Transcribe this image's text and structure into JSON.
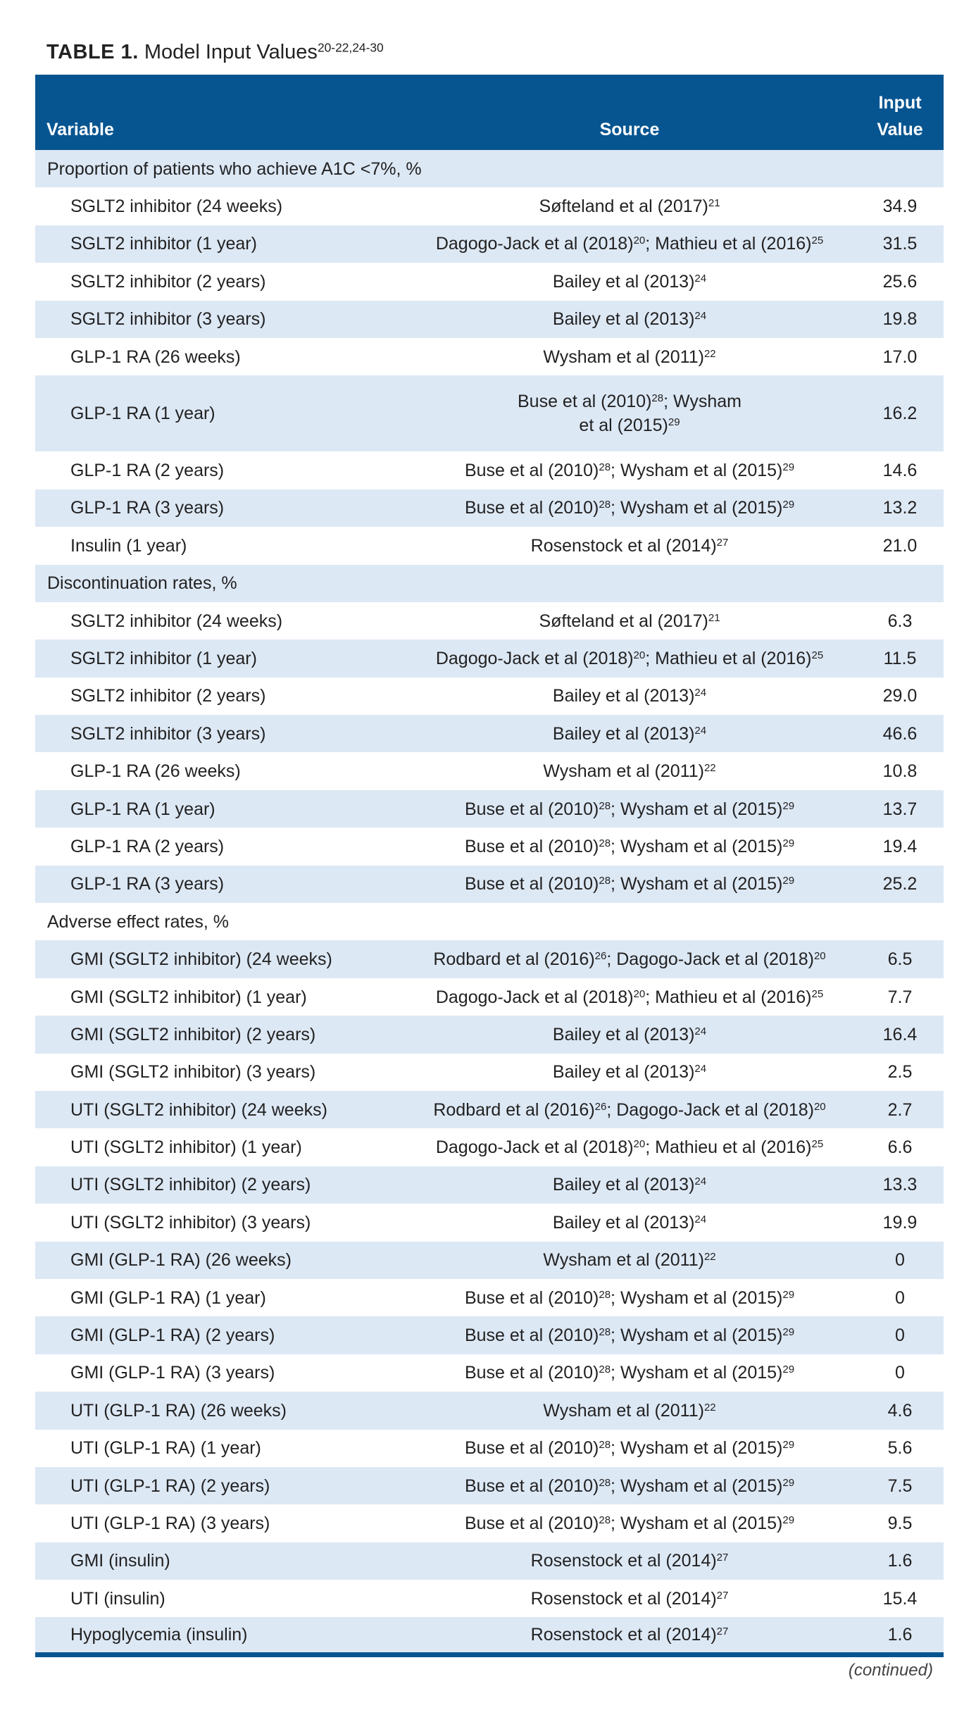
{
  "title": {
    "label": "TABLE 1.",
    "text": "Model Input Values",
    "refs": "20-22,24-30"
  },
  "table": {
    "columns": [
      "Variable",
      "Source",
      "Input Value"
    ],
    "sections": [
      {
        "label": "Proportion of patients who achieve A1C <7%, %",
        "rows": [
          {
            "variable": "SGLT2 inhibitor (24 weeks)",
            "source": [
              {
                "text": "Søfteland et al (2017)",
                "sup": "21"
              }
            ],
            "value": "34.9"
          },
          {
            "variable": "SGLT2 inhibitor (1 year)",
            "source": [
              {
                "text": "Dagogo-Jack et al (2018)",
                "sup": "20"
              },
              {
                "text": "; Mathieu et al (2016)",
                "sup": "25"
              }
            ],
            "value": "31.5"
          },
          {
            "variable": "SGLT2 inhibitor (2 years)",
            "source": [
              {
                "text": "Bailey et al (2013)",
                "sup": "24"
              }
            ],
            "value": "25.6"
          },
          {
            "variable": "SGLT2 inhibitor (3 years)",
            "source": [
              {
                "text": "Bailey et al (2013)",
                "sup": "24"
              }
            ],
            "value": "19.8"
          },
          {
            "variable": "GLP-1 RA (26 weeks)",
            "source": [
              {
                "text": "Wysham et al (2011)",
                "sup": "22"
              }
            ],
            "value": "17.0"
          },
          {
            "variable": "GLP-1 RA (1 year)",
            "source": [
              {
                "text": "Buse et al (2010)",
                "sup": "28"
              },
              {
                "text": "; Wysham et al (2015)",
                "sup": "29"
              }
            ],
            "value": "16.2"
          },
          {
            "variable": "GLP-1 RA (2 years)",
            "source": [
              {
                "text": "Buse et al (2010)",
                "sup": "28"
              },
              {
                "text": "; Wysham et al (2015)",
                "sup": "29"
              }
            ],
            "value": "14.6"
          },
          {
            "variable": "GLP-1 RA (3 years)",
            "source": [
              {
                "text": "Buse et al (2010)",
                "sup": "28"
              },
              {
                "text": "; Wysham et al (2015)",
                "sup": "29"
              }
            ],
            "value": "13.2"
          },
          {
            "variable": "Insulin (1 year)",
            "source": [
              {
                "text": "Rosenstock et al (2014)",
                "sup": "27"
              }
            ],
            "value": "21.0"
          }
        ]
      },
      {
        "label": "Discontinuation rates, %",
        "rows": [
          {
            "variable": "SGLT2 inhibitor (24 weeks)",
            "source": [
              {
                "text": "Søfteland et al (2017)",
                "sup": "21"
              }
            ],
            "value": "6.3"
          },
          {
            "variable": "SGLT2 inhibitor (1 year)",
            "source": [
              {
                "text": "Dagogo-Jack et al (2018)",
                "sup": "20"
              },
              {
                "text": "; Mathieu et al (2016)",
                "sup": "25"
              }
            ],
            "value": "11.5"
          },
          {
            "variable": "SGLT2 inhibitor (2 years)",
            "source": [
              {
                "text": "Bailey et al (2013)",
                "sup": "24"
              }
            ],
            "value": "29.0"
          },
          {
            "variable": "SGLT2 inhibitor (3 years)",
            "source": [
              {
                "text": "Bailey et al (2013)",
                "sup": "24"
              }
            ],
            "value": "46.6"
          },
          {
            "variable": "GLP-1 RA (26 weeks)",
            "source": [
              {
                "text": "Wysham et al (2011)",
                "sup": "22"
              }
            ],
            "value": "10.8"
          },
          {
            "variable": "GLP-1 RA (1 year)",
            "source": [
              {
                "text": "Buse et al (2010)",
                "sup": "28"
              },
              {
                "text": "; Wysham et al (2015)",
                "sup": "29"
              }
            ],
            "value": "13.7"
          },
          {
            "variable": "GLP-1 RA (2 years)",
            "source": [
              {
                "text": "Buse et al (2010)",
                "sup": "28"
              },
              {
                "text": "; Wysham et al (2015)",
                "sup": "29"
              }
            ],
            "value": "19.4"
          },
          {
            "variable": "GLP-1 RA (3 years)",
            "source": [
              {
                "text": "Buse et al (2010)",
                "sup": "28"
              },
              {
                "text": "; Wysham et al (2015)",
                "sup": "29"
              }
            ],
            "value": "25.2"
          }
        ]
      },
      {
        "label": "Adverse effect rates, %",
        "rows": [
          {
            "variable": "GMI (SGLT2 inhibitor) (24 weeks)",
            "source": [
              {
                "text": "Rodbard et al (2016)",
                "sup": "26"
              },
              {
                "text": "; Dagogo-Jack et al (2018)",
                "sup": "20"
              }
            ],
            "value": "6.5"
          },
          {
            "variable": "GMI (SGLT2 inhibitor) (1 year)",
            "source": [
              {
                "text": "Dagogo-Jack et al (2018)",
                "sup": "20"
              },
              {
                "text": "; Mathieu et al (2016)",
                "sup": "25"
              }
            ],
            "value": "7.7"
          },
          {
            "variable": "GMI (SGLT2 inhibitor) (2 years)",
            "source": [
              {
                "text": "Bailey et al (2013)",
                "sup": "24"
              }
            ],
            "value": "16.4"
          },
          {
            "variable": "GMI (SGLT2 inhibitor) (3 years)",
            "source": [
              {
                "text": "Bailey et al (2013)",
                "sup": "24"
              }
            ],
            "value": "2.5"
          },
          {
            "variable": "UTI (SGLT2 inhibitor) (24 weeks)",
            "source": [
              {
                "text": "Rodbard et al (2016)",
                "sup": "26"
              },
              {
                "text": "; Dagogo-Jack et al (2018)",
                "sup": "20"
              }
            ],
            "value": "2.7"
          },
          {
            "variable": "UTI (SGLT2 inhibitor) (1 year)",
            "source": [
              {
                "text": "Dagogo-Jack et al (2018)",
                "sup": "20"
              },
              {
                "text": "; Mathieu et al (2016)",
                "sup": "25"
              }
            ],
            "value": "6.6"
          },
          {
            "variable": "UTI (SGLT2 inhibitor) (2 years)",
            "source": [
              {
                "text": "Bailey et al (2013)",
                "sup": "24"
              }
            ],
            "value": "13.3"
          },
          {
            "variable": "UTI (SGLT2 inhibitor) (3 years)",
            "source": [
              {
                "text": "Bailey et al (2013)",
                "sup": "24"
              }
            ],
            "value": "19.9"
          },
          {
            "variable": "GMI (GLP-1 RA) (26 weeks)",
            "source": [
              {
                "text": "Wysham et al (2011)",
                "sup": "22"
              }
            ],
            "value": "0"
          },
          {
            "variable": "GMI (GLP-1 RA) (1 year)",
            "source": [
              {
                "text": "Buse et al (2010)",
                "sup": "28"
              },
              {
                "text": "; Wysham et al (2015)",
                "sup": "29"
              }
            ],
            "value": "0"
          },
          {
            "variable": "GMI (GLP-1 RA) (2 years)",
            "source": [
              {
                "text": "Buse et al (2010)",
                "sup": "28"
              },
              {
                "text": "; Wysham et al (2015)",
                "sup": "29"
              }
            ],
            "value": "0"
          },
          {
            "variable": "GMI (GLP-1 RA) (3 years)",
            "source": [
              {
                "text": "Buse et al (2010)",
                "sup": "28"
              },
              {
                "text": "; Wysham et al (2015)",
                "sup": "29"
              }
            ],
            "value": "0"
          },
          {
            "variable": "UTI (GLP-1 RA) (26 weeks)",
            "source": [
              {
                "text": "Wysham et al (2011)",
                "sup": "22"
              }
            ],
            "value": "4.6"
          },
          {
            "variable": "UTI (GLP-1 RA) (1 year)",
            "source": [
              {
                "text": "Buse et al (2010)",
                "sup": "28"
              },
              {
                "text": "; Wysham et al (2015)",
                "sup": "29"
              }
            ],
            "value": "5.6"
          },
          {
            "variable": "UTI (GLP-1 RA) (2 years)",
            "source": [
              {
                "text": "Buse et al (2010)",
                "sup": "28"
              },
              {
                "text": "; Wysham et al (2015)",
                "sup": "29"
              }
            ],
            "value": "7.5"
          },
          {
            "variable": "UTI (GLP-1 RA) (3 years)",
            "source": [
              {
                "text": "Buse et al (2010)",
                "sup": "28"
              },
              {
                "text": "; Wysham et al (2015)",
                "sup": "29"
              }
            ],
            "value": "9.5"
          },
          {
            "variable": "GMI (insulin)",
            "source": [
              {
                "text": "Rosenstock et al (2014)",
                "sup": "27"
              }
            ],
            "value": "1.6"
          },
          {
            "variable": "UTI (insulin)",
            "source": [
              {
                "text": "Rosenstock et al (2014)",
                "sup": "27"
              }
            ],
            "value": "15.4"
          },
          {
            "variable": "Hypoglycemia (insulin)",
            "source": [
              {
                "text": "Rosenstock et al (2014)",
                "sup": "27"
              }
            ],
            "value": "1.6"
          }
        ]
      }
    ]
  },
  "footer": "(continued)"
}
